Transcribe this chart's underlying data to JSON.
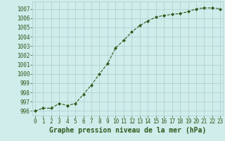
{
  "x": [
    0,
    1,
    2,
    3,
    4,
    5,
    6,
    7,
    8,
    9,
    10,
    11,
    12,
    13,
    14,
    15,
    16,
    17,
    18,
    19,
    20,
    21,
    22,
    23
  ],
  "y": [
    996.0,
    996.3,
    996.3,
    996.8,
    996.6,
    996.8,
    997.8,
    998.8,
    1000.0,
    1001.1,
    1002.8,
    1003.6,
    1004.5,
    1005.2,
    1005.7,
    1006.1,
    1006.3,
    1006.4,
    1006.5,
    1006.7,
    1007.0,
    1007.1,
    1007.1,
    1007.0
  ],
  "line_color": "#2d5a1b",
  "marker": "D",
  "marker_size": 2.0,
  "bg_color": "#d0eceb",
  "grid_color": "#aacece",
  "xlabel": "Graphe pression niveau de la mer (hPa)",
  "xlabel_fontsize": 7,
  "xlabel_color": "#2d5a1b",
  "ylabel_ticks": [
    996,
    997,
    998,
    999,
    1000,
    1001,
    1002,
    1003,
    1004,
    1005,
    1006,
    1007
  ],
  "xlim": [
    -0.3,
    23.3
  ],
  "ylim": [
    995.5,
    1007.8
  ],
  "tick_fontsize": 5.5,
  "tick_color": "#2d5a1b",
  "linewidth": 0.8
}
